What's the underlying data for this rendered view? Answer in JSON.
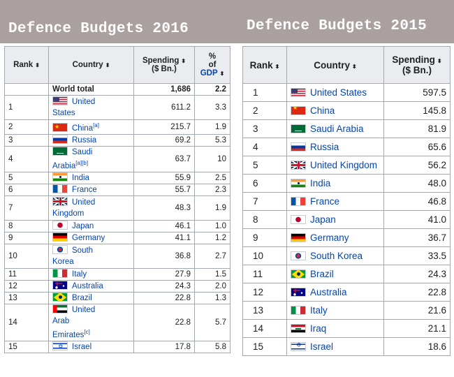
{
  "titles": {
    "left": "Defence Budgets 2016",
    "right": "Defence Budgets 2015"
  },
  "table_2016": {
    "headers": {
      "rank": "Rank",
      "country": "Country",
      "spending_1": "Spending",
      "spending_2": "($ Bn.)",
      "gdp_1": "%",
      "gdp_2": "of",
      "gdp_3": "GDP"
    },
    "total": {
      "label": "World total",
      "spending": "1,686",
      "gdp": "2.2"
    },
    "rows": [
      {
        "rank": "1",
        "flag": "us",
        "line1": "United",
        "line2": "States",
        "line3": "",
        "note": "",
        "spending": "611.2",
        "gdp": "3.3"
      },
      {
        "rank": "2",
        "flag": "cn",
        "line1": "China",
        "line2": "",
        "line3": "",
        "note": "[a]",
        "spending": "215.7",
        "gdp": "1.9"
      },
      {
        "rank": "3",
        "flag": "ru",
        "line1": "Russia",
        "line2": "",
        "line3": "",
        "note": "",
        "spending": "69.2",
        "gdp": "5.3"
      },
      {
        "rank": "4",
        "flag": "sa",
        "line1": "Saudi",
        "line2": "Arabia",
        "line3": "",
        "note": "[a][b]",
        "spending": "63.7",
        "gdp": "10"
      },
      {
        "rank": "5",
        "flag": "in",
        "line1": "India",
        "line2": "",
        "line3": "",
        "note": "",
        "spending": "55.9",
        "gdp": "2.5"
      },
      {
        "rank": "6",
        "flag": "fr",
        "line1": "France",
        "line2": "",
        "line3": "",
        "note": "",
        "spending": "55.7",
        "gdp": "2.3"
      },
      {
        "rank": "7",
        "flag": "uk",
        "line1": "United",
        "line2": "Kingdom",
        "line3": "",
        "note": "",
        "spending": "48.3",
        "gdp": "1.9"
      },
      {
        "rank": "8",
        "flag": "jp",
        "line1": "Japan",
        "line2": "",
        "line3": "",
        "note": "",
        "spending": "46.1",
        "gdp": "1.0"
      },
      {
        "rank": "9",
        "flag": "de",
        "line1": "Germany",
        "line2": "",
        "line3": "",
        "note": "",
        "spending": "41.1",
        "gdp": "1.2"
      },
      {
        "rank": "10",
        "flag": "kr",
        "line1": "South",
        "line2": "Korea",
        "line3": "",
        "note": "",
        "spending": "36.8",
        "gdp": "2.7"
      },
      {
        "rank": "11",
        "flag": "it",
        "line1": "Italy",
        "line2": "",
        "line3": "",
        "note": "",
        "spending": "27.9",
        "gdp": "1.5"
      },
      {
        "rank": "12",
        "flag": "au",
        "line1": "Australia",
        "line2": "",
        "line3": "",
        "note": "",
        "spending": "24.3",
        "gdp": "2.0"
      },
      {
        "rank": "13",
        "flag": "br",
        "line1": "Brazil",
        "line2": "",
        "line3": "",
        "note": "",
        "spending": "22.8",
        "gdp": "1.3"
      },
      {
        "rank": "14",
        "flag": "ae",
        "line1": "United",
        "line2": "Arab",
        "line3": "Emirates",
        "note": "[c]",
        "spending": "22.8",
        "gdp": "5.7"
      },
      {
        "rank": "15",
        "flag": "il",
        "line1": "Israel",
        "line2": "",
        "line3": "",
        "note": "",
        "spending": "17.8",
        "gdp": "5.8"
      }
    ]
  },
  "table_2015": {
    "headers": {
      "rank": "Rank",
      "country": "Country",
      "spending_1": "Spending",
      "spending_2": "($ Bn.)"
    },
    "rows": [
      {
        "rank": "1",
        "flag": "us",
        "country": "United States",
        "spending": "597.5"
      },
      {
        "rank": "2",
        "flag": "cn",
        "country": "China",
        "spending": "145.8"
      },
      {
        "rank": "3",
        "flag": "sa",
        "country": "Saudi Arabia",
        "spending": "81.9"
      },
      {
        "rank": "4",
        "flag": "ru",
        "country": "Russia",
        "spending": "65.6"
      },
      {
        "rank": "5",
        "flag": "uk",
        "country": "United Kingdom",
        "spending": "56.2"
      },
      {
        "rank": "6",
        "flag": "in",
        "country": "India",
        "spending": "48.0"
      },
      {
        "rank": "7",
        "flag": "fr",
        "country": "France",
        "spending": "46.8"
      },
      {
        "rank": "8",
        "flag": "jp",
        "country": "Japan",
        "spending": "41.0"
      },
      {
        "rank": "9",
        "flag": "de",
        "country": "Germany",
        "spending": "36.7"
      },
      {
        "rank": "10",
        "flag": "kr",
        "country": "South Korea",
        "spending": "33.5"
      },
      {
        "rank": "11",
        "flag": "br",
        "country": "Brazil",
        "spending": "24.3"
      },
      {
        "rank": "12",
        "flag": "au",
        "country": "Australia",
        "spending": "22.8"
      },
      {
        "rank": "13",
        "flag": "it",
        "country": "Italy",
        "spending": "21.6"
      },
      {
        "rank": "14",
        "flag": "iq",
        "country": "Iraq",
        "spending": "21.1"
      },
      {
        "rank": "15",
        "flag": "il",
        "country": "Israel",
        "spending": "18.6"
      }
    ]
  },
  "sort_glyph": "⬍"
}
